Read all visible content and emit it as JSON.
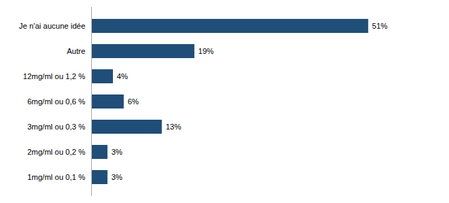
{
  "chart_data": {
    "type": "bar",
    "orientation": "horizontal",
    "categories": [
      "1mg/ml ou 0,1 %",
      "2mg/ml ou 0,2 %",
      "3mg/ml ou 0,3 %",
      "6mg/ml ou 0,6 %",
      "12mg/ml ou 1,2 %",
      "Autre",
      "Je n'ai aucune idée"
    ],
    "values": [
      3,
      3,
      13,
      6,
      4,
      19,
      51
    ],
    "value_labels": [
      "3%",
      "3%",
      "13%",
      "6%",
      "4%",
      "19%",
      "51%"
    ],
    "color": "#1F4E79",
    "xlim": [
      0,
      62
    ],
    "data_labels": true,
    "tick_labels": "y",
    "grid": false
  }
}
